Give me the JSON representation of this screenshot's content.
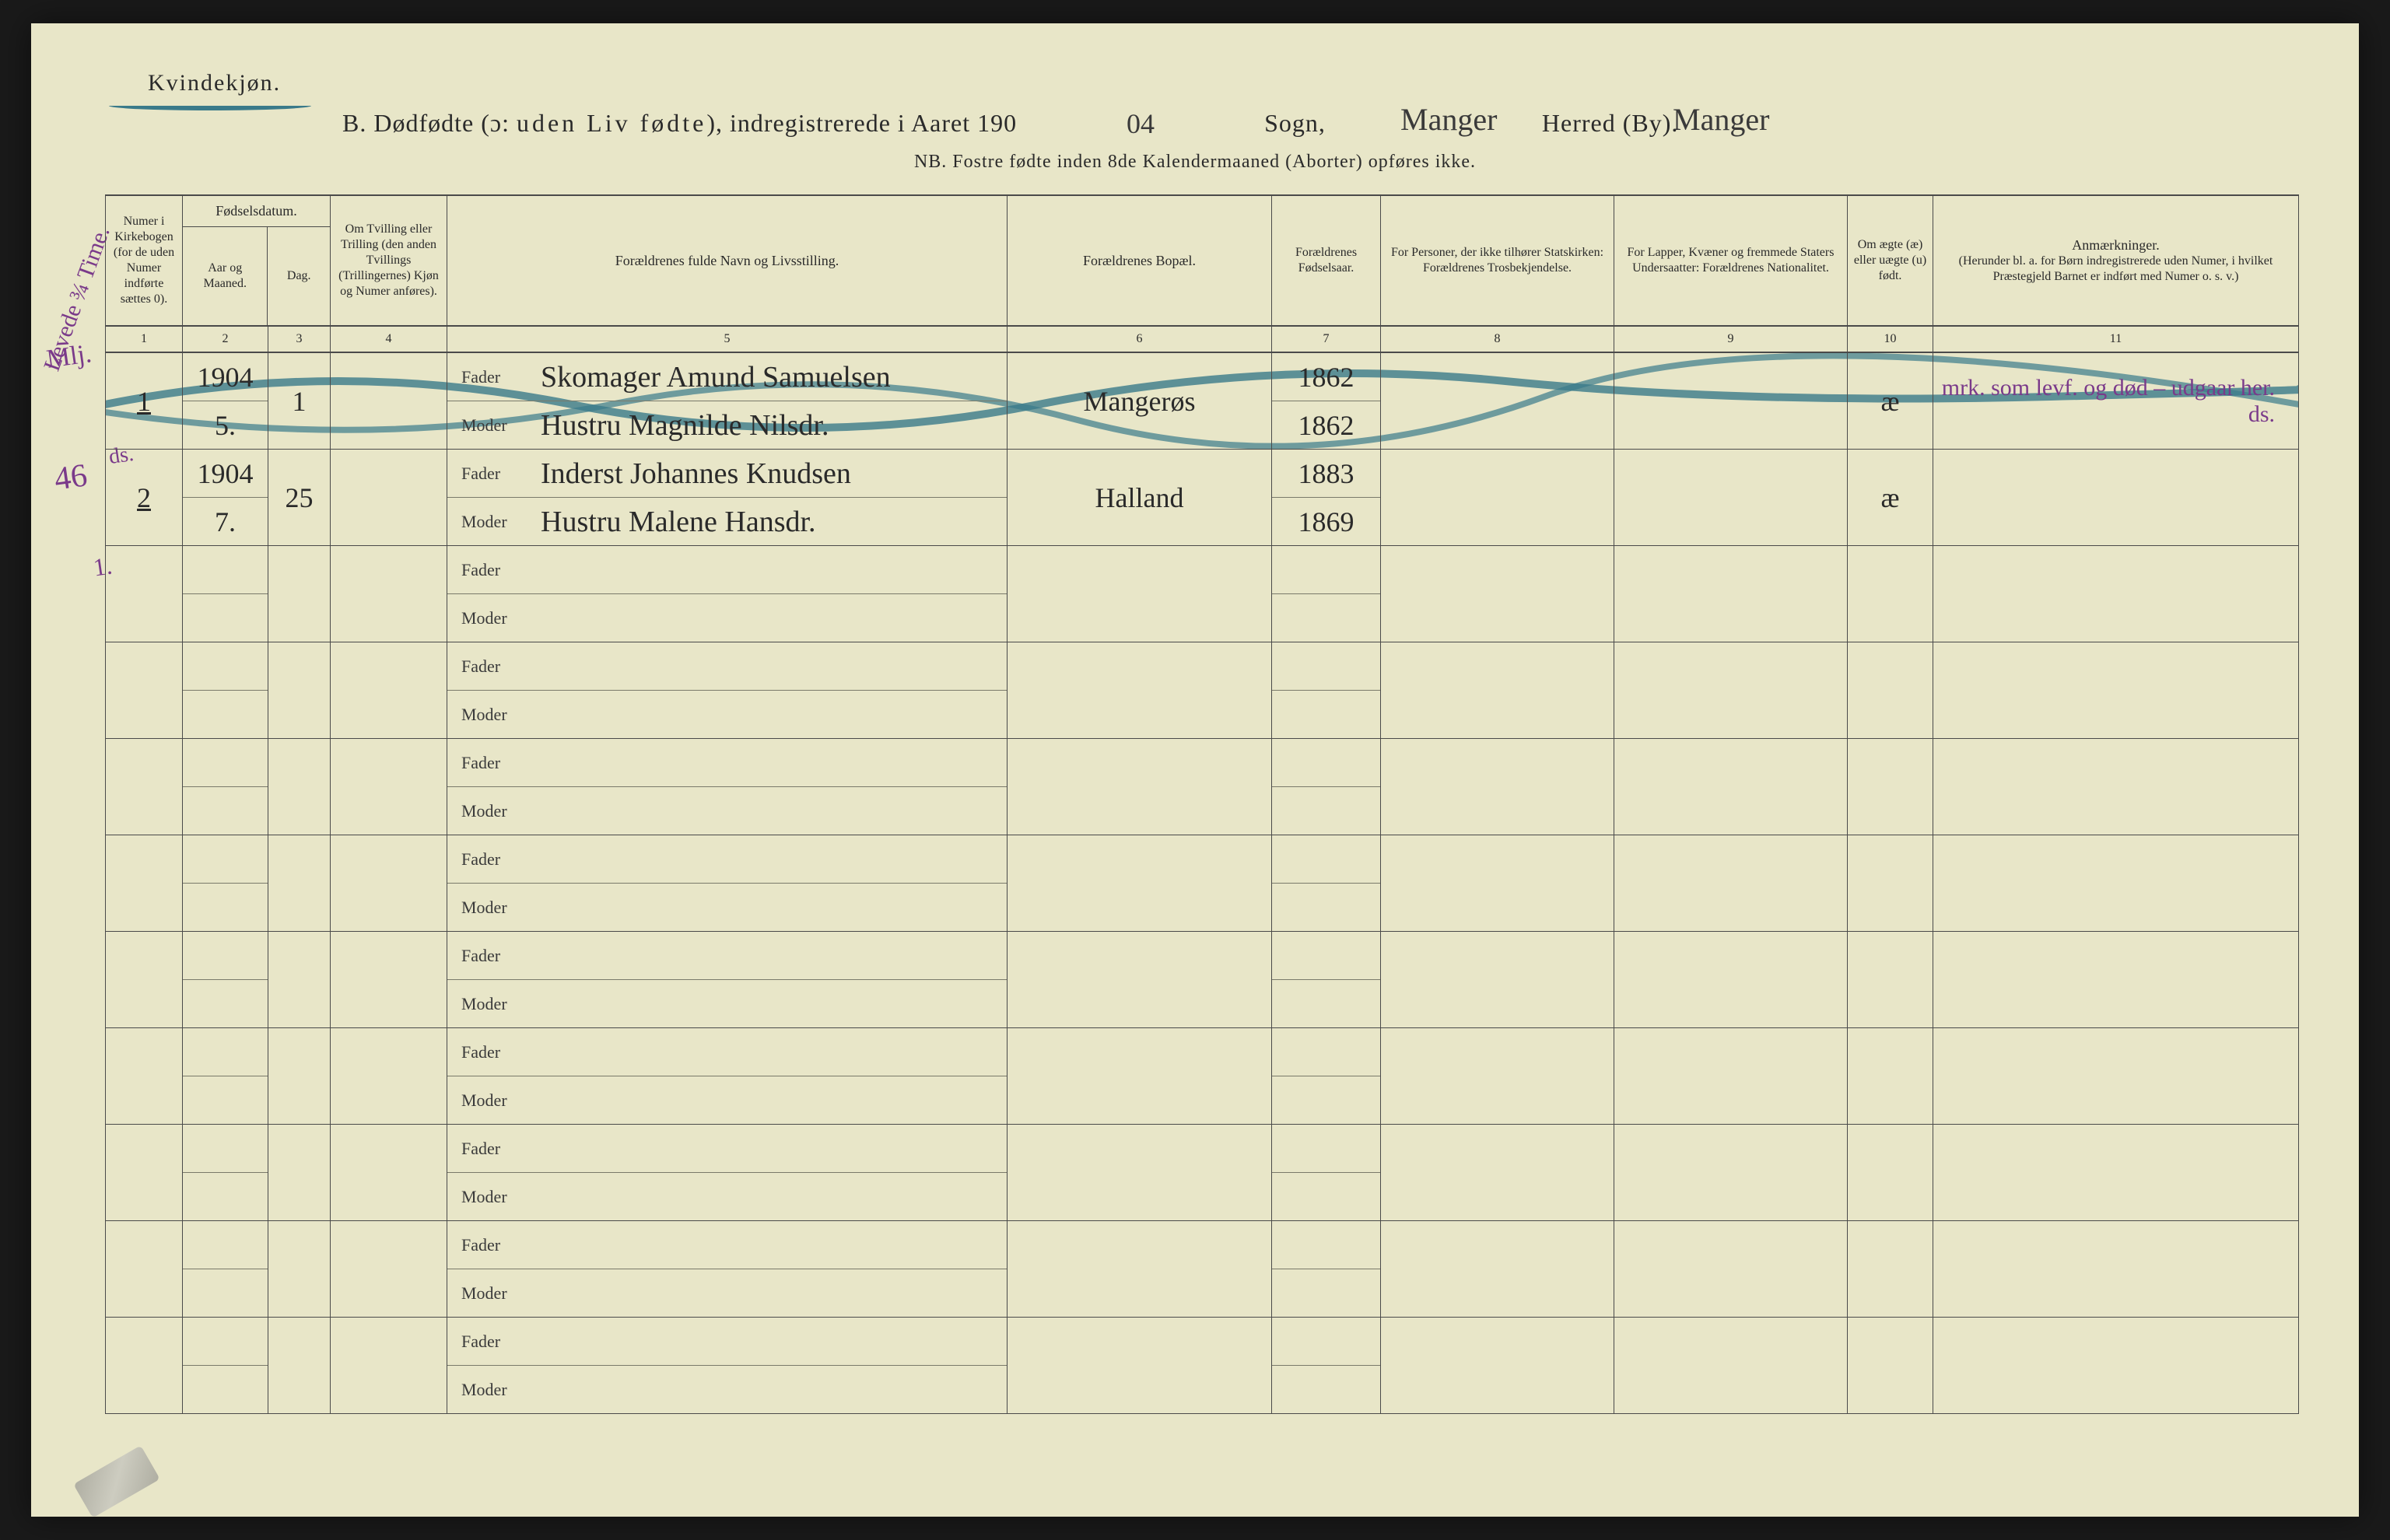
{
  "page": {
    "background": "#e8e6c8",
    "ink": "#2a2a2a",
    "pencil_blue": "#3a7a8a",
    "pencil_purple": "#7a3a8a"
  },
  "header": {
    "gender": "Kvindekjøn.",
    "title_prefix": "B.   Dødfødte (ɔ:",
    "title_spaced": "uden Liv fødte",
    "title_suffix": "), indregistrerede i Aaret 190",
    "year_hw": "04",
    "sogn_hw": "Manger",
    "sogn_label": "Sogn,",
    "herred_hw": "Manger",
    "herred_label": "Herred (By).",
    "nb": "NB.  Fostre fødte inden 8de Kalendermaaned (Aborter) opføres ikke."
  },
  "columns": {
    "c1": "Numer i Kirkebogen (for de uden Numer indførte sættes 0).",
    "c2_group": "Fødselsdatum.",
    "c2": "Aar og Maaned.",
    "c3": "Dag.",
    "c4": "Om Tvilling eller Trilling (den anden Tvillings (Trillingernes) Kjøn og Numer anføres).",
    "c5": "Forældrenes fulde Navn og Livsstilling.",
    "c6": "Forældrenes Bopæl.",
    "c7": "Forældrenes Fødselsaar.",
    "c8": "For Personer, der ikke tilhører Statskirken: Forældrenes Trosbekjendelse.",
    "c9": "For Lapper, Kvæner og fremmede Staters Undersaatter: Forældrenes Nationalitet.",
    "c10": "Om ægte (æ) eller uægte (u) født.",
    "c11": "Anmærkninger.",
    "c11_sub": "(Herunder bl. a. for Børn indregistrerede uden Numer, i hvilket Præstegjeld Barnet er indført med Numer o. s. v.)",
    "nums": [
      "1",
      "2",
      "3",
      "4",
      "5",
      "6",
      "7",
      "8",
      "9",
      "10",
      "11"
    ],
    "fader": "Fader",
    "moder": "Moder"
  },
  "margin": {
    "m1a": "Mlj.",
    "m1b": "Levede ¾ Time.",
    "m2": "46",
    "m3": "ds.",
    "m4": "1."
  },
  "entries": [
    {
      "num": "1",
      "year_month": "1904\n5.",
      "day": "1",
      "twin": "",
      "fader": "Skomager Amund Samuelsen",
      "moder": "Hustru Magnilde Nilsdr.",
      "bopael": "Mangerøs",
      "fader_year": "1862",
      "moder_year": "1862",
      "col8": "",
      "col9": "",
      "aegte": "æ",
      "remarks": "mrk. som levf. og død – udgaar her.\nds."
    },
    {
      "num": "2",
      "year_month": "1904\n7.",
      "day": "25",
      "twin": "",
      "fader": "Inderst Johannes Knudsen",
      "moder": "Hustru Malene Hansdr.",
      "bopael": "Halland",
      "fader_year": "1883",
      "moder_year": "1869",
      "col8": "",
      "col9": "",
      "aegte": "æ",
      "remarks": ""
    },
    {
      "num": "",
      "year_month": "",
      "day": "",
      "twin": "",
      "fader": "",
      "moder": "",
      "bopael": "",
      "fader_year": "",
      "moder_year": "",
      "col8": "",
      "col9": "",
      "aegte": "",
      "remarks": ""
    },
    {
      "num": "",
      "year_month": "",
      "day": "",
      "twin": "",
      "fader": "",
      "moder": "",
      "bopael": "",
      "fader_year": "",
      "moder_year": "",
      "col8": "",
      "col9": "",
      "aegte": "",
      "remarks": ""
    },
    {
      "num": "",
      "year_month": "",
      "day": "",
      "twin": "",
      "fader": "",
      "moder": "",
      "bopael": "",
      "fader_year": "",
      "moder_year": "",
      "col8": "",
      "col9": "",
      "aegte": "",
      "remarks": ""
    },
    {
      "num": "",
      "year_month": "",
      "day": "",
      "twin": "",
      "fader": "",
      "moder": "",
      "bopael": "",
      "fader_year": "",
      "moder_year": "",
      "col8": "",
      "col9": "",
      "aegte": "",
      "remarks": ""
    },
    {
      "num": "",
      "year_month": "",
      "day": "",
      "twin": "",
      "fader": "",
      "moder": "",
      "bopael": "",
      "fader_year": "",
      "moder_year": "",
      "col8": "",
      "col9": "",
      "aegte": "",
      "remarks": ""
    },
    {
      "num": "",
      "year_month": "",
      "day": "",
      "twin": "",
      "fader": "",
      "moder": "",
      "bopael": "",
      "fader_year": "",
      "moder_year": "",
      "col8": "",
      "col9": "",
      "aegte": "",
      "remarks": ""
    },
    {
      "num": "",
      "year_month": "",
      "day": "",
      "twin": "",
      "fader": "",
      "moder": "",
      "bopael": "",
      "fader_year": "",
      "moder_year": "",
      "col8": "",
      "col9": "",
      "aegte": "",
      "remarks": ""
    },
    {
      "num": "",
      "year_month": "",
      "day": "",
      "twin": "",
      "fader": "",
      "moder": "",
      "bopael": "",
      "fader_year": "",
      "moder_year": "",
      "col8": "",
      "col9": "",
      "aegte": "",
      "remarks": ""
    },
    {
      "num": "",
      "year_month": "",
      "day": "",
      "twin": "",
      "fader": "",
      "moder": "",
      "bopael": "",
      "fader_year": "",
      "moder_year": "",
      "col8": "",
      "col9": "",
      "aegte": "",
      "remarks": ""
    }
  ]
}
